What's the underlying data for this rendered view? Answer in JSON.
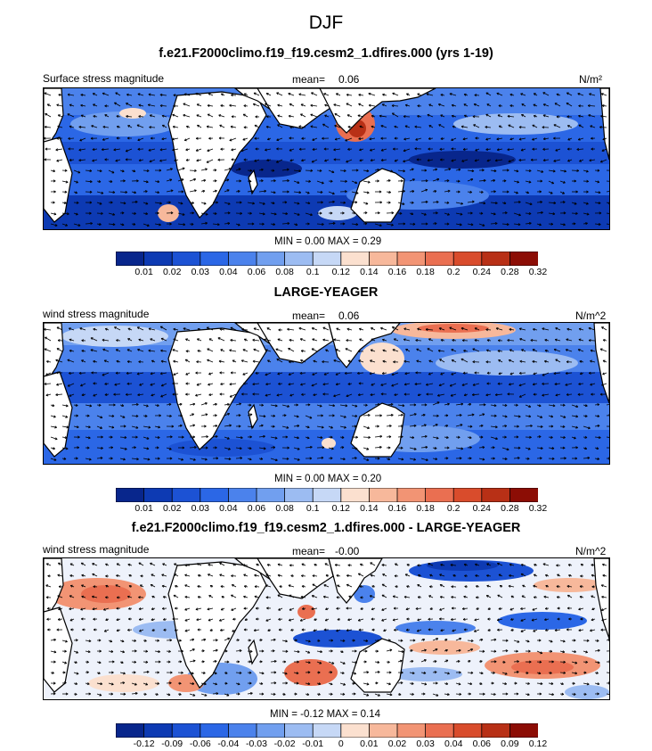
{
  "title": "DJF",
  "panels": [
    {
      "title": "f.e21.F2000climo.f19_f19.cesm2_1.dfires.000 (yrs 1-19)",
      "left_label": "Surface stress magnitude",
      "mean_label": "mean=",
      "mean_value": "0.06",
      "units": "N/m²",
      "minmax": "MIN =  0.00 MAX =   0.29",
      "colorbar_ticks": [
        "0.01",
        "0.02",
        "0.03",
        "0.04",
        "0.06",
        "0.08",
        "0.1",
        "0.12",
        "0.14",
        "0.16",
        "0.18",
        "0.2",
        "0.24",
        "0.28",
        "0.32"
      ]
    },
    {
      "title": "LARGE-YEAGER",
      "left_label": "wind stress magnitude",
      "mean_label": "mean=",
      "mean_value": "0.06",
      "units": "N/m^2",
      "minmax": "MIN =  0.00 MAX =   0.20",
      "colorbar_ticks": [
        "0.01",
        "0.02",
        "0.03",
        "0.04",
        "0.06",
        "0.08",
        "0.1",
        "0.12",
        "0.14",
        "0.16",
        "0.18",
        "0.2",
        "0.24",
        "0.28",
        "0.32"
      ]
    },
    {
      "title": "f.e21.F2000climo.f19_f19.cesm2_1.dfires.000 - LARGE-YEAGER",
      "left_label": "wind stress magnitude",
      "mean_label": "mean=",
      "mean_value": "-0.00",
      "units": "N/m^2",
      "minmax": "MIN = -0.12 MAX =   0.14",
      "colorbar_ticks": [
        "-0.12",
        "-0.09",
        "-0.06",
        "-0.04",
        "-0.03",
        "-0.02",
        "-0.01",
        "0",
        "0.01",
        "0.02",
        "0.03",
        "0.04",
        "0.06",
        "0.09",
        "0.12"
      ]
    }
  ],
  "colors": {
    "colorbar": [
      "#08268c",
      "#0d3ab3",
      "#1c52d4",
      "#2b67e6",
      "#4b82ec",
      "#719fef",
      "#9cbcf2",
      "#c6d8f6",
      "#fbe0cf",
      "#f7b89b",
      "#f29474",
      "#ea6f51",
      "#d94c2c",
      "#b83016",
      "#8c0d05"
    ],
    "land": "#ffffff",
    "coast": "#000000"
  }
}
